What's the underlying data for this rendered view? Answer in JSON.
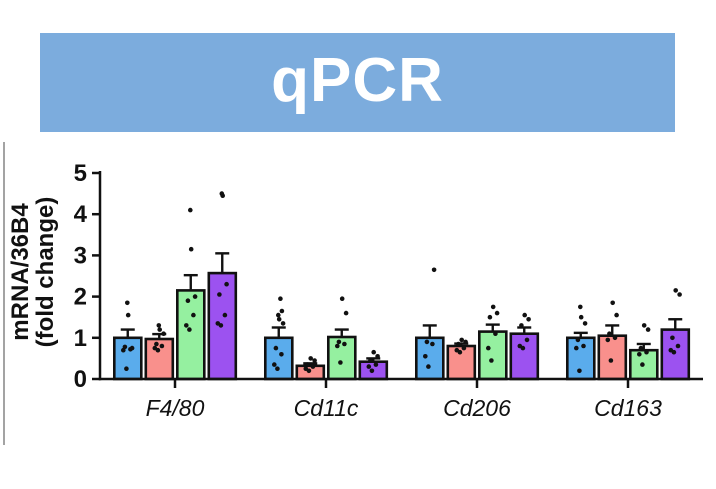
{
  "banner": {
    "title": "qPCR",
    "bg_color": "#7CACDD",
    "text_color": "#FFFFFF"
  },
  "decor": {
    "left_line_color": "#A3A3A3"
  },
  "chart_data": {
    "type": "bar",
    "title": "qPCR",
    "categories": [
      "F4/80",
      "Cd11c",
      "Cd206",
      "Cd163"
    ],
    "xlabel": "",
    "ylabel": "mRNA/36B4 (fold change)",
    "ylabel_lines": [
      "mRNA/36B4",
      "(fold change)"
    ],
    "ylim": [
      0,
      5
    ],
    "yticks": [
      0,
      1,
      2,
      3,
      4,
      5
    ],
    "grid": false,
    "legend_position": "none",
    "error_bar_type": "upper SEM with cap",
    "axis_color": "#111111",
    "dot_color": "#111111",
    "series": [
      {
        "name": "series-1-blue",
        "fill": "#5AACEC",
        "means": [
          1.0,
          1.0,
          1.0,
          1.0
        ],
        "sems": [
          0.2,
          0.25,
          0.3,
          0.12
        ],
        "points": [
          [
            0.25,
            0.7,
            0.72,
            0.78,
            0.75,
            1.55,
            1.85
          ],
          [
            0.25,
            0.35,
            0.6,
            0.75,
            1.35,
            1.45,
            1.55,
            1.65,
            1.95
          ],
          [
            0.3,
            0.55,
            0.85,
            0.9,
            2.65
          ],
          [
            0.2,
            0.75,
            0.8,
            0.95,
            1.35,
            1.5,
            1.75
          ]
        ]
      },
      {
        "name": "series-2-pink",
        "fill": "#F9908C",
        "means": [
          0.97,
          0.32,
          0.8,
          1.05
        ],
        "sems": [
          0.12,
          0.06,
          0.06,
          0.25
        ],
        "points": [
          [
            0.7,
            0.75,
            0.8,
            0.85,
            1.1,
            1.2,
            1.3
          ],
          [
            0.2,
            0.25,
            0.3,
            0.35,
            0.45,
            0.5
          ],
          [
            0.65,
            0.7,
            0.75,
            0.85,
            0.9,
            0.95
          ],
          [
            0.45,
            0.95,
            1.0,
            1.1,
            1.55,
            1.85
          ]
        ]
      },
      {
        "name": "series-3-green",
        "fill": "#95F0A0",
        "means": [
          2.15,
          1.02,
          1.15,
          0.7
        ],
        "sems": [
          0.37,
          0.18,
          0.17,
          0.15
        ],
        "points": [
          [
            1.2,
            1.3,
            1.55,
            1.9,
            2.0,
            3.15,
            4.1
          ],
          [
            0.4,
            0.8,
            0.85,
            0.9,
            1.6,
            1.95
          ],
          [
            0.45,
            0.75,
            1.1,
            1.5,
            1.6,
            1.75
          ],
          [
            0.35,
            0.6,
            0.65,
            0.75,
            1.2,
            1.3
          ]
        ]
      },
      {
        "name": "series-4-purple",
        "fill": "#9C52F0",
        "means": [
          2.57,
          0.42,
          1.1,
          1.2
        ],
        "sems": [
          0.48,
          0.08,
          0.15,
          0.25
        ],
        "points": [
          [
            1.3,
            1.35,
            1.55,
            2.05,
            2.3,
            4.45,
            4.5
          ],
          [
            0.2,
            0.3,
            0.35,
            0.45,
            0.55,
            0.65
          ],
          [
            0.75,
            0.8,
            0.95,
            1.3,
            1.45,
            1.55
          ],
          [
            0.65,
            0.7,
            0.8,
            1.0,
            2.05,
            2.15
          ]
        ]
      }
    ]
  }
}
